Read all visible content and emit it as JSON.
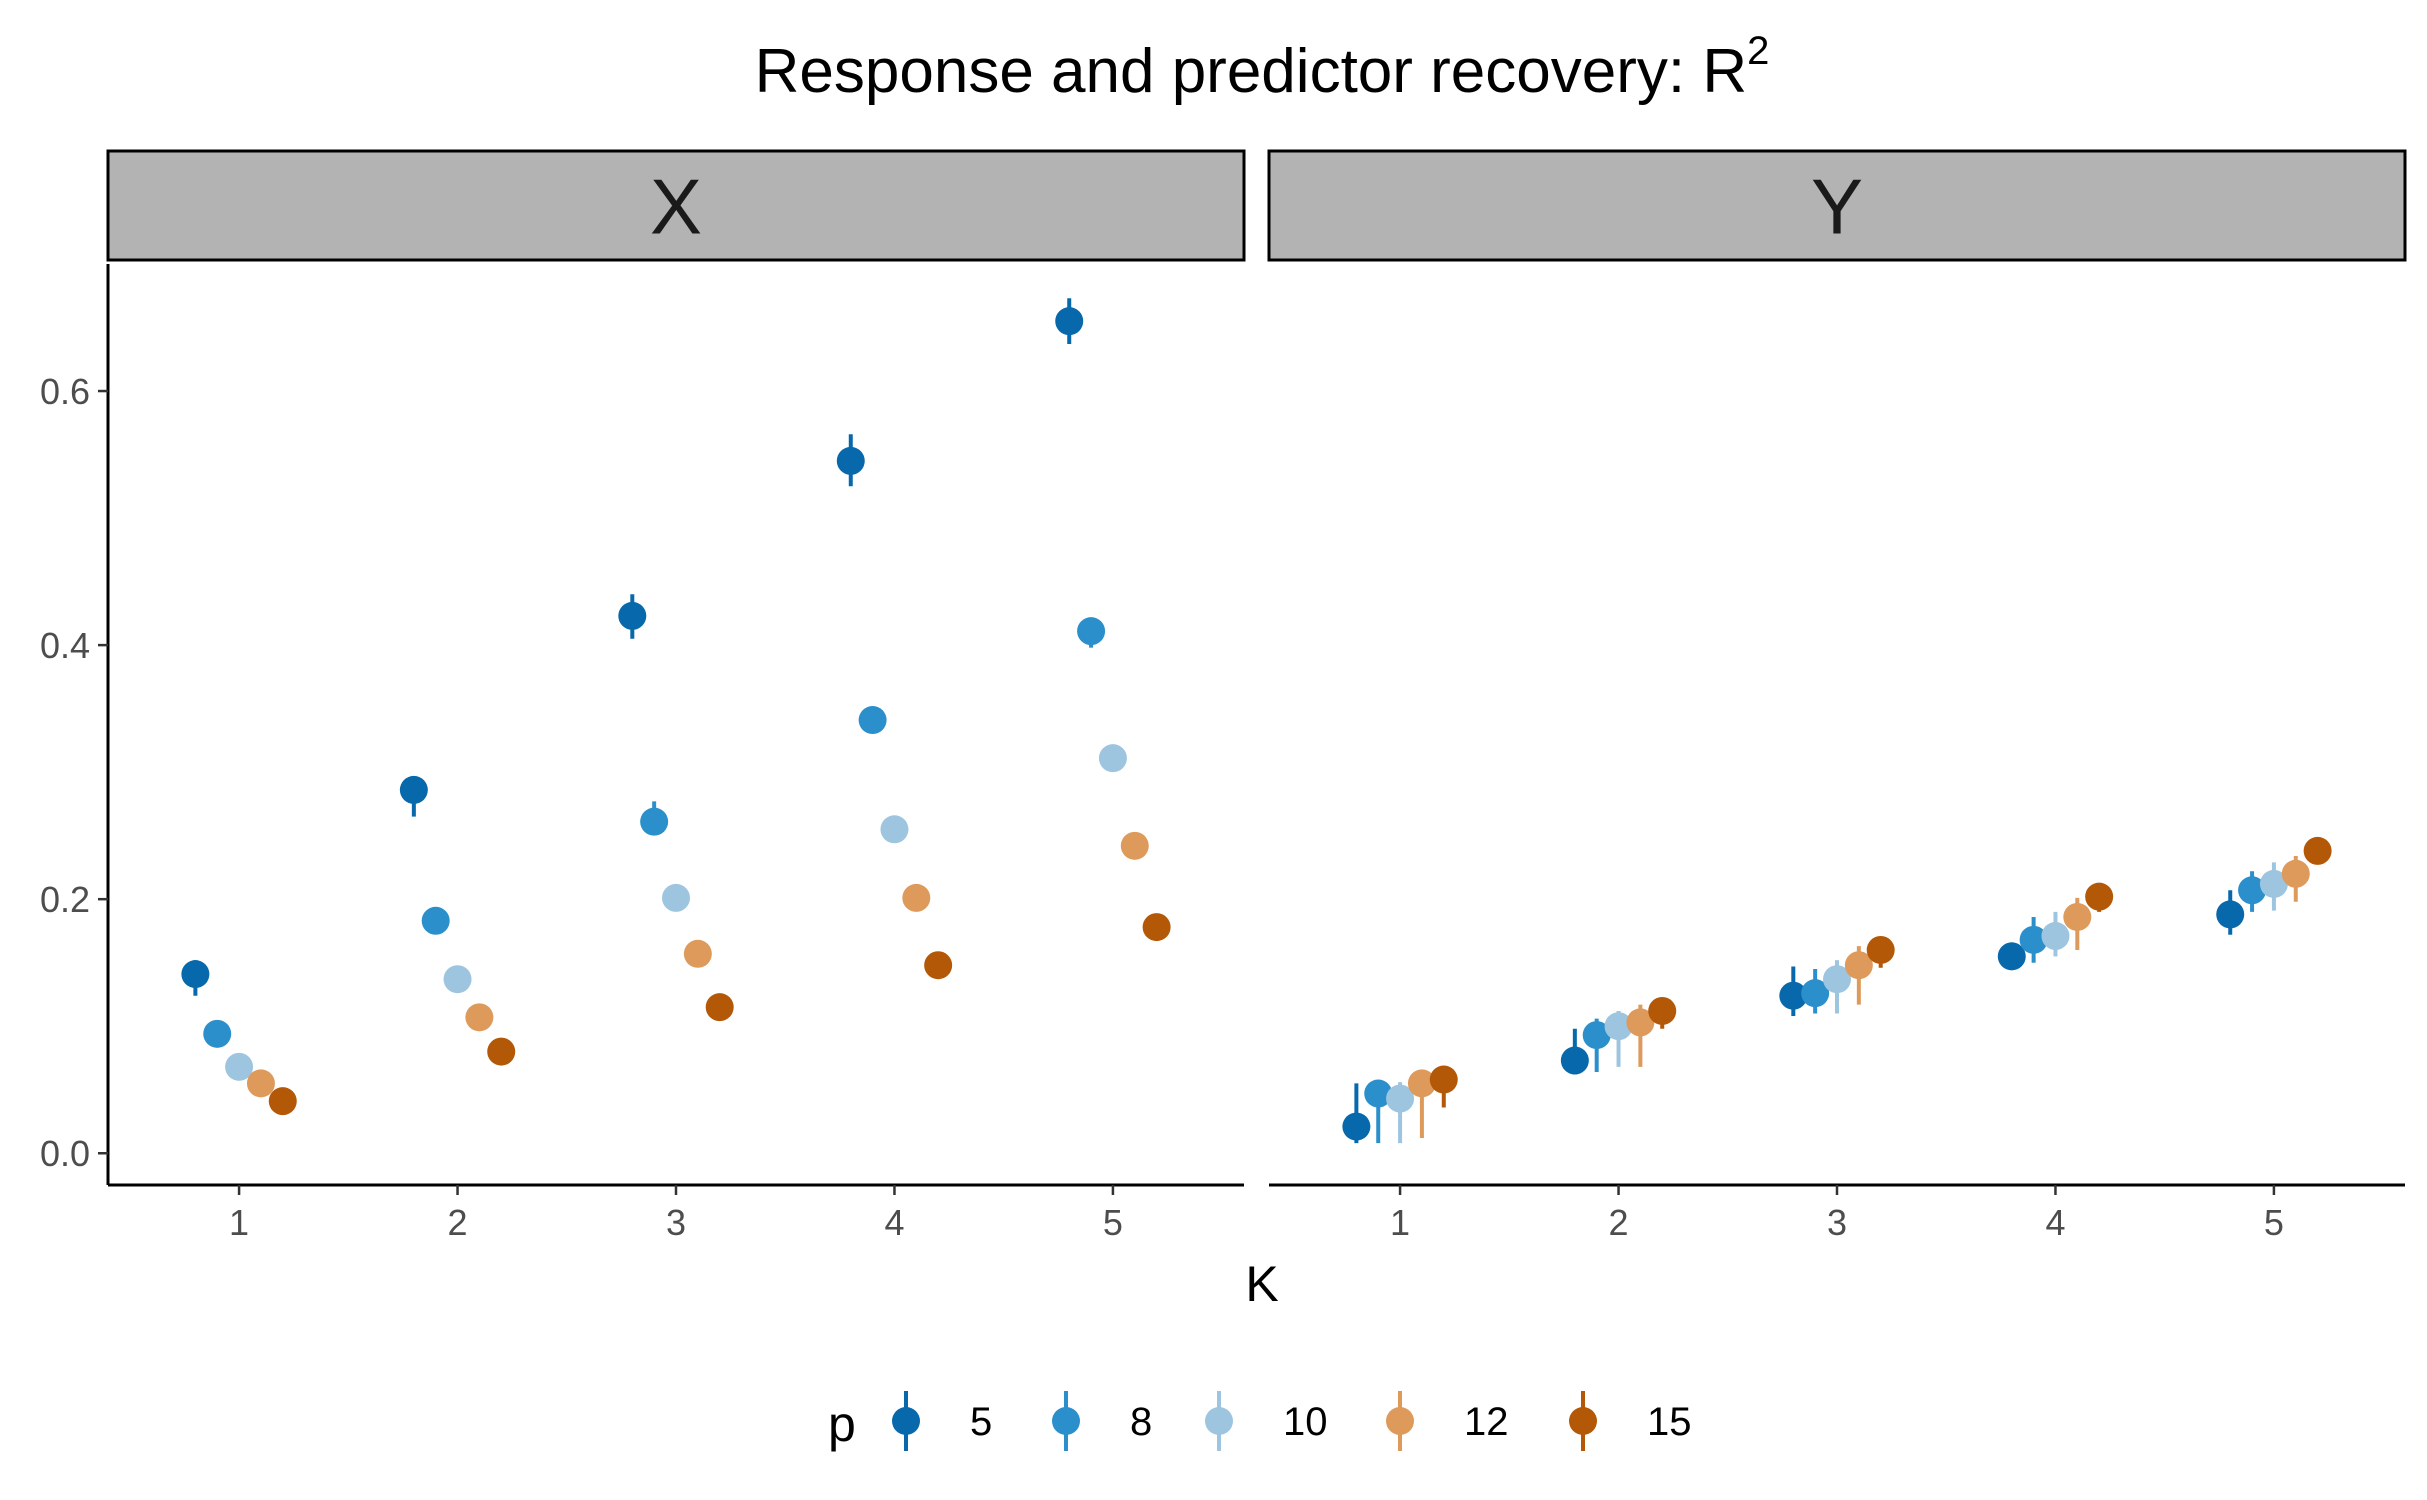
{
  "chart_data": {
    "type": "scatter",
    "title_main": "Response and predictor recovery: R",
    "title_sup": "2",
    "xlabel": "K",
    "ylabel": "",
    "x_categories": [
      "1",
      "2",
      "3",
      "4",
      "5"
    ],
    "y_ticks": [
      "0.0",
      "0.2",
      "0.4",
      "0.6"
    ],
    "ylim": [
      -0.025,
      0.7
    ],
    "dodge_offsets": [
      -0.2,
      -0.1,
      0,
      0.1,
      0.2
    ],
    "legend_title": "p",
    "legend_position": "bottom",
    "grid": false,
    "series": [
      {
        "name": "5",
        "color": "#0868AC"
      },
      {
        "name": "8",
        "color": "#2B8FCB"
      },
      {
        "name": "10",
        "color": "#9EC5E0"
      },
      {
        "name": "12",
        "color": "#DE9A5B"
      },
      {
        "name": "15",
        "color": "#B35806"
      }
    ],
    "panels": [
      {
        "label": "X",
        "values": [
          [
            0.141,
            0.286,
            0.423,
            0.545,
            0.655
          ],
          [
            0.094,
            0.183,
            0.261,
            0.341,
            0.411
          ],
          [
            0.068,
            0.137,
            0.201,
            0.255,
            0.311
          ],
          [
            0.055,
            0.107,
            0.157,
            0.201,
            0.242
          ],
          [
            0.041,
            0.08,
            0.115,
            0.148,
            0.178
          ]
        ],
        "lower": [
          [
            0.124,
            0.265,
            0.405,
            0.525,
            0.637
          ],
          [
            0.092,
            0.181,
            0.259,
            0.339,
            0.398
          ],
          [
            0.066,
            0.135,
            0.199,
            0.253,
            0.309
          ],
          [
            0.053,
            0.105,
            0.155,
            0.199,
            0.24
          ],
          [
            0.039,
            0.078,
            0.113,
            0.146,
            0.176
          ]
        ],
        "upper": [
          [
            0.152,
            0.295,
            0.44,
            0.566,
            0.673
          ],
          [
            0.096,
            0.185,
            0.277,
            0.343,
            0.413
          ],
          [
            0.07,
            0.139,
            0.203,
            0.257,
            0.313
          ],
          [
            0.057,
            0.109,
            0.159,
            0.203,
            0.244
          ],
          [
            0.043,
            0.082,
            0.117,
            0.15,
            0.18
          ]
        ]
      },
      {
        "label": "Y",
        "values": [
          [
            0.021,
            0.073,
            0.124,
            0.155,
            0.188
          ],
          [
            0.047,
            0.093,
            0.126,
            0.168,
            0.207
          ],
          [
            0.043,
            0.1,
            0.137,
            0.171,
            0.212
          ],
          [
            0.055,
            0.103,
            0.148,
            0.186,
            0.22
          ],
          [
            0.058,
            0.112,
            0.16,
            0.202,
            0.238
          ]
        ],
        "lower": [
          [
            0.008,
            0.062,
            0.108,
            0.145,
            0.172
          ],
          [
            0.008,
            0.064,
            0.11,
            0.15,
            0.19
          ],
          [
            0.008,
            0.068,
            0.11,
            0.155,
            0.191
          ],
          [
            0.012,
            0.068,
            0.117,
            0.16,
            0.198
          ],
          [
            0.036,
            0.098,
            0.146,
            0.19,
            0.228
          ]
        ],
        "upper": [
          [
            0.055,
            0.098,
            0.147,
            0.166,
            0.207
          ],
          [
            0.053,
            0.106,
            0.145,
            0.186,
            0.222
          ],
          [
            0.056,
            0.112,
            0.152,
            0.19,
            0.229
          ],
          [
            0.063,
            0.117,
            0.163,
            0.201,
            0.234
          ],
          [
            0.064,
            0.12,
            0.168,
            0.21,
            0.244
          ]
        ]
      }
    ]
  }
}
